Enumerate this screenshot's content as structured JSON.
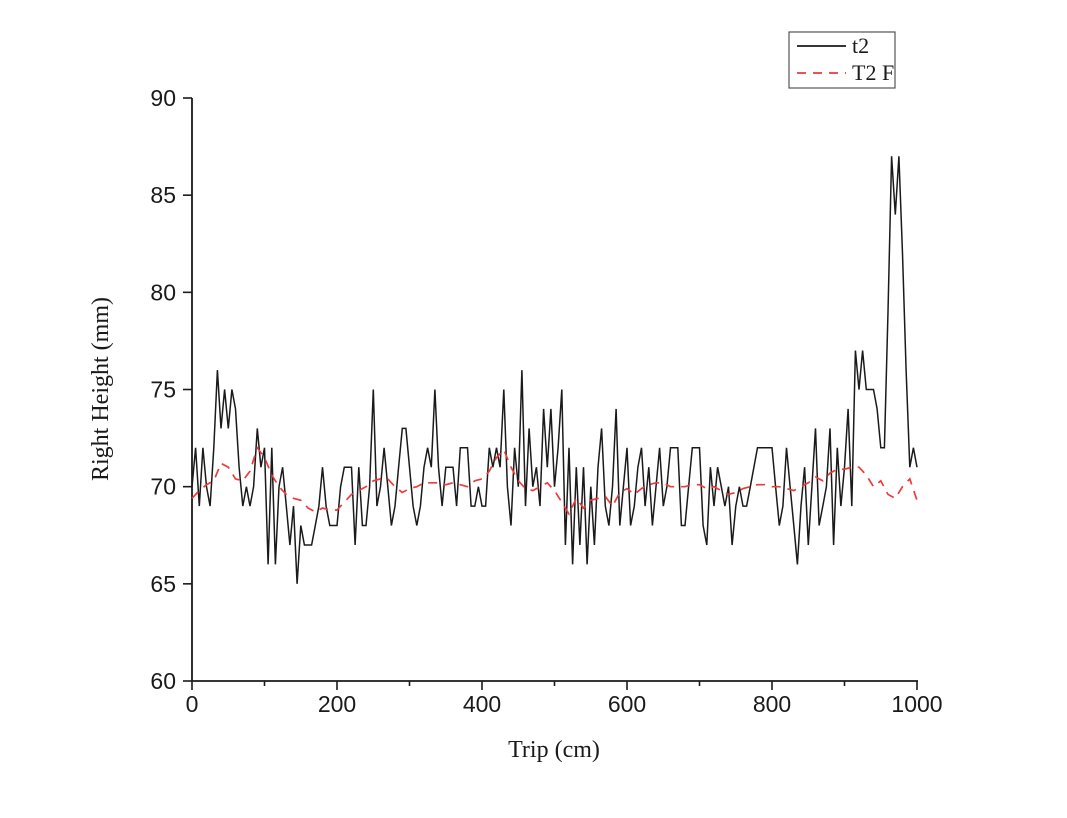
{
  "chart_data": {
    "type": "line",
    "title": "",
    "xlabel": "Trip (cm)",
    "ylabel": "Right Height (mm)",
    "xlim": [
      0,
      1000
    ],
    "ylim": [
      60,
      90
    ],
    "grid": false,
    "x_ticks": [
      0,
      200,
      400,
      600,
      800,
      1000
    ],
    "x_minor_ticks": [
      100,
      300,
      500,
      700,
      900
    ],
    "y_ticks": [
      60,
      65,
      70,
      75,
      80,
      85,
      90
    ],
    "legend": {
      "position": "top-right",
      "entries": [
        {
          "label": "t2",
          "color": "#1a1a1a",
          "style": "solid"
        },
        {
          "label": "T2 F",
          "color": "#ee3a3a",
          "style": "dashed"
        }
      ]
    },
    "series": [
      {
        "name": "t2",
        "color": "#1a1a1a",
        "line_style": "solid",
        "x_start": 0,
        "x_step": 5,
        "values": [
          70,
          72,
          69,
          72,
          70,
          69,
          72,
          76,
          73,
          75,
          73,
          75,
          74,
          71,
          69,
          70,
          69,
          70,
          73,
          71,
          72,
          66,
          72,
          66,
          70,
          71,
          69,
          67,
          69,
          65,
          68,
          67,
          67,
          67,
          68,
          69,
          71,
          69,
          68,
          68,
          68,
          70,
          71,
          71,
          71,
          67,
          71,
          68,
          68,
          70,
          75,
          69,
          70,
          72,
          70,
          68,
          69,
          71,
          73,
          73,
          71,
          69,
          68,
          69,
          71,
          72,
          71,
          75,
          71,
          69,
          71,
          71,
          71,
          69,
          72,
          72,
          72,
          69,
          69,
          70,
          69,
          69,
          72,
          71,
          72,
          71,
          75,
          70,
          68,
          72,
          70,
          76,
          69,
          73,
          70,
          71,
          69,
          74,
          71,
          74,
          70,
          72,
          75,
          67,
          72,
          66,
          71,
          67,
          71,
          66,
          70,
          67,
          71,
          73,
          69,
          68,
          70,
          74,
          68,
          70,
          72,
          68,
          69,
          71,
          72,
          69,
          71,
          68,
          70,
          72,
          69,
          70,
          72,
          72,
          72,
          68,
          68,
          70,
          72,
          72,
          72,
          68,
          67,
          71,
          69,
          71,
          70,
          69,
          70,
          67,
          69,
          70,
          69,
          69,
          70,
          71,
          72,
          72,
          72,
          72,
          72,
          70,
          68,
          69,
          72,
          70,
          68,
          66,
          69,
          71,
          67,
          70,
          73,
          68,
          69,
          70,
          73,
          67,
          72,
          69,
          71,
          74,
          69,
          77,
          75,
          77,
          75,
          75,
          75,
          74,
          72,
          72,
          79,
          87,
          84,
          87,
          82,
          76,
          71,
          72,
          71
        ]
      },
      {
        "name": "T2 F",
        "color": "#ee3a3a",
        "line_style": "dashed",
        "x_start": 0,
        "x_step": 10,
        "values": [
          69.4,
          69.8,
          70.1,
          70.3,
          71.2,
          71.0,
          70.4,
          70.3,
          70.8,
          72.0,
          71.5,
          70.6,
          70.0,
          69.6,
          69.4,
          69.3,
          68.9,
          68.7,
          68.9,
          68.8,
          68.8,
          69.2,
          69.6,
          69.8,
          70.0,
          70.3,
          70.4,
          70.4,
          70.0,
          69.7,
          69.9,
          70.0,
          70.2,
          70.2,
          70.2,
          70.1,
          70.2,
          70.1,
          70.0,
          70.3,
          70.4,
          70.8,
          71.5,
          71.9,
          71.0,
          70.3,
          69.9,
          69.8,
          70.0,
          70.2,
          69.8,
          69.2,
          68.6,
          69.4,
          68.9,
          69.3,
          69.4,
          69.5,
          69.0,
          69.7,
          69.9,
          69.6,
          69.9,
          70.1,
          70.2,
          70.2,
          70.0,
          70.0,
          70.0,
          70.1,
          70.1,
          69.9,
          70.0,
          69.8,
          69.6,
          69.7,
          69.9,
          70.0,
          70.1,
          70.1,
          70.0,
          70.0,
          69.9,
          69.8,
          70.0,
          70.2,
          70.5,
          70.3,
          70.7,
          70.9,
          70.9,
          71.0,
          71.0,
          70.6,
          70.0,
          70.3,
          69.6,
          69.4,
          70.0,
          70.4,
          69.3
        ]
      }
    ]
  }
}
